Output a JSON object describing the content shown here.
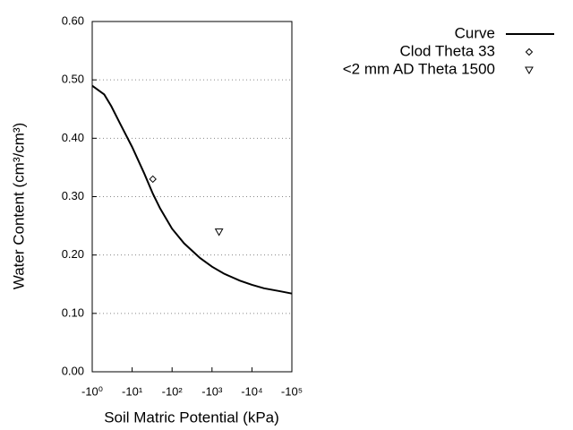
{
  "chart_data": {
    "type": "line",
    "x_label": "Soil Matric Potential (kPa)",
    "y_label": "Water Content (cm³/cm³)",
    "xscale": "log",
    "xlim": [
      1,
      100000
    ],
    "ylim": [
      0,
      0.6
    ],
    "xticks": [
      {
        "value": 1,
        "label": "-10⁰"
      },
      {
        "value": 10,
        "label": "-10¹"
      },
      {
        "value": 100,
        "label": "-10²"
      },
      {
        "value": 1000,
        "label": "-10³"
      },
      {
        "value": 10000,
        "label": "-10⁴"
      },
      {
        "value": 100000,
        "label": "-10⁵"
      }
    ],
    "yticks": [
      {
        "value": 0,
        "label": "0.00"
      },
      {
        "value": 0.1,
        "label": "0.10"
      },
      {
        "value": 0.2,
        "label": "0.20"
      },
      {
        "value": 0.3,
        "label": "0.30"
      },
      {
        "value": 0.4,
        "label": "0.40"
      },
      {
        "value": 0.5,
        "label": "0.50"
      },
      {
        "value": 0.6,
        "label": "0.60"
      }
    ],
    "grid": true,
    "legend": "outside upper right",
    "series": [
      {
        "name": "Curve",
        "color": "#000000",
        "marker": "none",
        "x": [
          1,
          2,
          3,
          5,
          10,
          20,
          33,
          50,
          100,
          200,
          500,
          1000,
          2000,
          5000,
          10000,
          20000,
          50000,
          100000
        ],
        "values": [
          0.49,
          0.475,
          0.455,
          0.425,
          0.385,
          0.34,
          0.305,
          0.28,
          0.245,
          0.22,
          0.195,
          0.18,
          0.168,
          0.156,
          0.149,
          0.143,
          0.138,
          0.134
        ]
      },
      {
        "name": "Clod Theta 33",
        "color": "#000000",
        "marker": "diamond",
        "x": [
          33
        ],
        "values": [
          0.33
        ]
      },
      {
        "name": "<2 mm AD Theta 1500",
        "color": "#000000",
        "marker": "triangle-down",
        "x": [
          1500
        ],
        "values": [
          0.24
        ]
      }
    ]
  }
}
